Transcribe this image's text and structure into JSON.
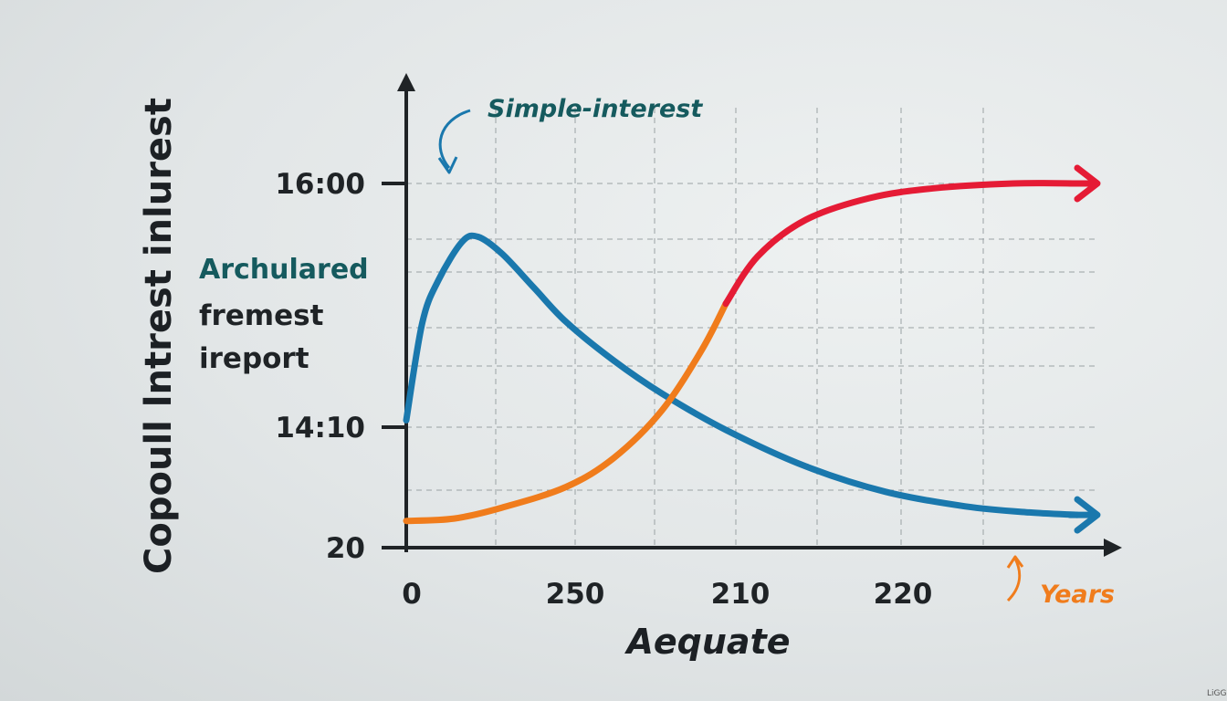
{
  "chart_data": {
    "type": "line",
    "ylabel": "Copoull lntrest inlurest",
    "xlabel": "Aequate",
    "x_ticks": [
      "0",
      "250",
      "210",
      "220"
    ],
    "y_ticks": [
      "20",
      "14:10",
      "16:00"
    ],
    "grid": true,
    "annotations": {
      "simple": "Simple-interest",
      "years": "Years"
    },
    "legend_text": {
      "line1": "Archulared",
      "line2": "fremest",
      "line3": "ireport"
    },
    "xlim": [
      0,
      4.2
    ],
    "ylim": [
      0,
      3
    ],
    "series": [
      {
        "color": "#1a78ad",
        "values": [
          [
            0,
            1.05
          ],
          [
            0.1,
            1.85
          ],
          [
            0.2,
            2.2
          ],
          [
            0.35,
            2.52
          ],
          [
            0.45,
            2.56
          ],
          [
            0.6,
            2.42
          ],
          [
            0.8,
            2.14
          ],
          [
            1.0,
            1.86
          ],
          [
            1.3,
            1.54
          ],
          [
            1.6,
            1.27
          ],
          [
            2.0,
            0.97
          ],
          [
            2.5,
            0.67
          ],
          [
            3.0,
            0.46
          ],
          [
            3.5,
            0.34
          ],
          [
            3.9,
            0.29
          ],
          [
            4.2,
            0.27
          ]
        ]
      },
      {
        "color": "#f07c1c",
        "values": [
          [
            0,
            0.22
          ],
          [
            0.3,
            0.24
          ],
          [
            0.6,
            0.33
          ],
          [
            1.0,
            0.5
          ],
          [
            1.3,
            0.74
          ],
          [
            1.6,
            1.13
          ],
          [
            1.85,
            1.63
          ],
          [
            2.0,
            2.01
          ]
        ]
      },
      {
        "color": "#e51b35",
        "values": [
          [
            2.0,
            2.01
          ],
          [
            2.2,
            2.4
          ],
          [
            2.5,
            2.7
          ],
          [
            2.9,
            2.88
          ],
          [
            3.3,
            2.96
          ],
          [
            3.8,
            3.0
          ],
          [
            4.2,
            3.0
          ]
        ]
      }
    ]
  },
  "signature": "LiGG"
}
